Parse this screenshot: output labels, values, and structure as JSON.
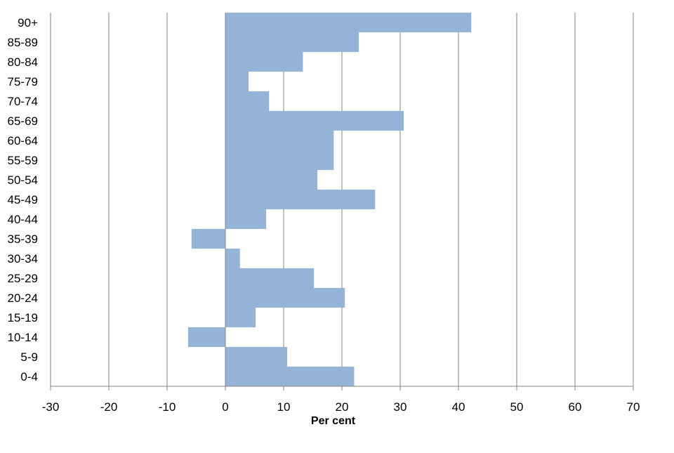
{
  "chart_data": {
    "type": "bar",
    "orientation": "horizontal",
    "categories": [
      "90+",
      "85-89",
      "80-84",
      "75-79",
      "70-74",
      "65-69",
      "60-64",
      "55-59",
      "50-54",
      "45-49",
      "40-44",
      "35-39",
      "30-34",
      "25-29",
      "20-24",
      "15-19",
      "10-14",
      "5-9",
      "0-4"
    ],
    "values": [
      42.2,
      22.9,
      13.3,
      4.0,
      7.5,
      30.6,
      18.6,
      18.6,
      15.8,
      25.7,
      7.0,
      -5.8,
      2.5,
      15.2,
      20.5,
      5.2,
      -6.4,
      10.6,
      22.1
    ],
    "xlabel": "Per cent",
    "ylabel": "",
    "xlim": [
      -30,
      70
    ],
    "xticks": [
      "-30",
      "-20",
      "-10",
      "0",
      "10",
      "20",
      "30",
      "40",
      "50",
      "60",
      "70"
    ],
    "grid": "vertical",
    "legend": "none",
    "colors": {
      "bar": "#95b3d7",
      "grid": "#868686",
      "axis": "#868686",
      "text": "#000000"
    }
  }
}
